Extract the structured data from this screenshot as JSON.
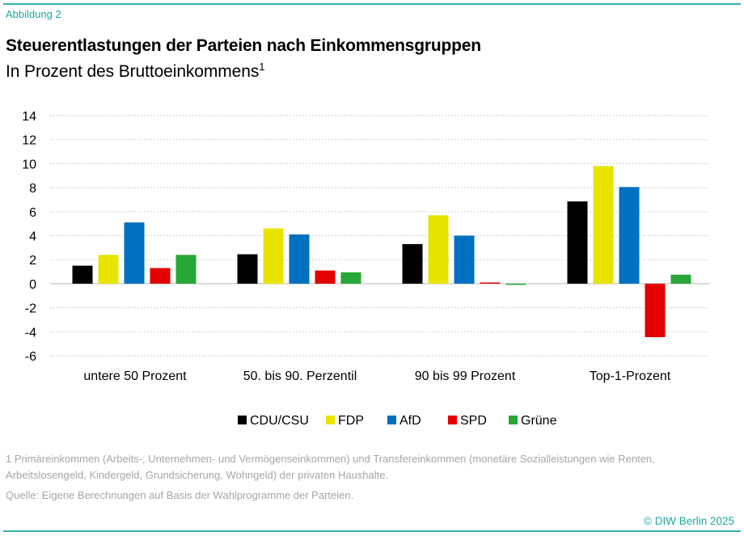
{
  "figure_label": "Abbildung 2",
  "title": "Steuerentlastungen der Parteien nach Einkommensgruppen",
  "subtitle": "In Prozent des Bruttoeinkommens",
  "subtitle_footnote_mark": "1",
  "footnote": "1 Primäreinkommen (Arbeits-, Unternehmen- und Vermögenseinkommen) und Transfereinkommen (monetäre Sozialleistungen wie Renten, Arbeitslosengeld, Kindergeld, Grundsicherung, Wohngeld) der privaten Haushalte.",
  "source": "Quelle: Eigene Berechnungen auf Basis der Wahlprogramme der Parteien.",
  "copyright": "© DIW Berlin 2025",
  "chart_data": {
    "type": "bar",
    "title": "Steuerentlastungen der Parteien nach Einkommensgruppen",
    "subtitle": "In Prozent des Bruttoeinkommens",
    "xlabel": "",
    "ylabel": "",
    "ylim": [
      -6,
      14
    ],
    "yticks": [
      -6,
      -4,
      -2,
      0,
      2,
      4,
      6,
      8,
      10,
      12,
      14
    ],
    "grid": true,
    "legend_position": "bottom",
    "categories": [
      "untere 50 Prozent",
      "50. bis 90. Perzentil",
      "90 bis 99 Prozent",
      "Top-1-Prozent"
    ],
    "series": [
      {
        "name": "CDU/CSU",
        "color": "#000000",
        "values": [
          1.5,
          2.45,
          3.3,
          6.85
        ]
      },
      {
        "name": "FDP",
        "color": "#e8e400",
        "values": [
          2.4,
          4.6,
          5.7,
          9.8
        ]
      },
      {
        "name": "AfD",
        "color": "#0070c0",
        "values": [
          5.1,
          4.1,
          4.0,
          8.05
        ]
      },
      {
        "name": "SPD",
        "color": "#e20000",
        "values": [
          1.3,
          1.1,
          0.1,
          -4.45
        ]
      },
      {
        "name": "Grüne",
        "color": "#27a737",
        "values": [
          2.4,
          0.95,
          -0.1,
          0.75
        ]
      }
    ]
  }
}
